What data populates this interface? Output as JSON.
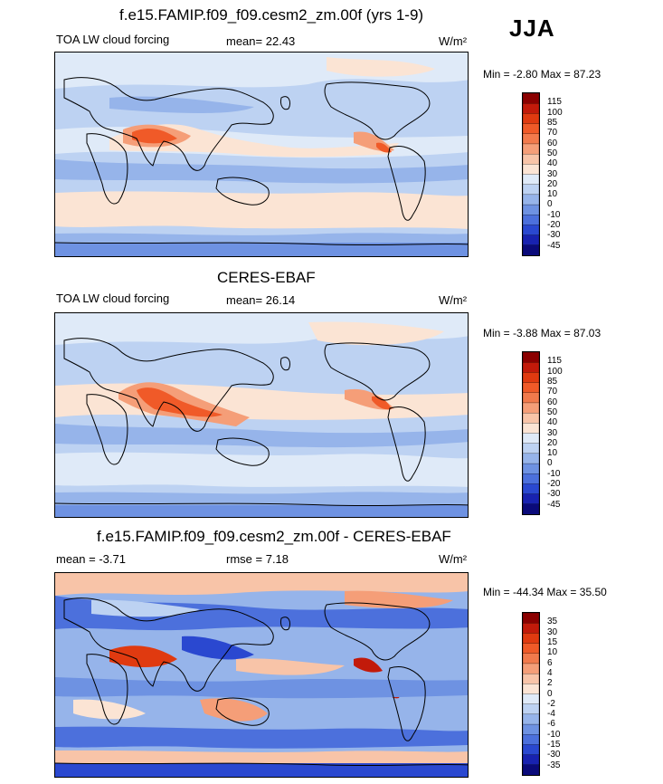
{
  "season": "JJA",
  "panels": [
    {
      "title": "f.e15.FAMIP.f09_f09.cesm2_zm.00f (yrs 1-9)",
      "left_label": "TOA LW cloud forcing",
      "stat_label": "mean=",
      "stat_value": "22.43",
      "units": "W/m²",
      "min_label": "Min =",
      "min_value": "-2.80",
      "max_label": "Max =",
      "max_value": "87.23",
      "colorbar_levels": [
        "115",
        "100",
        "85",
        "70",
        "60",
        "50",
        "40",
        "30",
        "20",
        "10",
        "0",
        "-10",
        "-20",
        "-30",
        "-45"
      ],
      "colorbar_colors": [
        "#8b0000",
        "#c21a0a",
        "#e03a10",
        "#f05a28",
        "#f27a4c",
        "#f59e78",
        "#f8c4a8",
        "#fbe4d4",
        "#dfeaf8",
        "#bdd2f2",
        "#96b4ea",
        "#6e92e2",
        "#4c70dc",
        "#2a48d0",
        "#1822b0",
        "#0a0a7a"
      ]
    },
    {
      "title": "CERES-EBAF",
      "left_label": "TOA LW cloud forcing",
      "stat_label": "mean=",
      "stat_value": "26.14",
      "units": "W/m²",
      "min_label": "Min =",
      "min_value": "-3.88",
      "max_label": "Max =",
      "max_value": "87.03",
      "colorbar_levels": [
        "115",
        "100",
        "85",
        "70",
        "60",
        "50",
        "40",
        "30",
        "20",
        "10",
        "0",
        "-10",
        "-20",
        "-30",
        "-45"
      ],
      "colorbar_colors": [
        "#8b0000",
        "#c21a0a",
        "#e03a10",
        "#f05a28",
        "#f27a4c",
        "#f59e78",
        "#f8c4a8",
        "#fbe4d4",
        "#dfeaf8",
        "#bdd2f2",
        "#96b4ea",
        "#6e92e2",
        "#4c70dc",
        "#2a48d0",
        "#1822b0",
        "#0a0a7a"
      ]
    },
    {
      "title": "f.e15.FAMIP.f09_f09.cesm2_zm.00f - CERES-EBAF",
      "left_label": "mean =  -3.71",
      "stat_label": "rmse =",
      "stat_value": "7.18",
      "units": "W/m²",
      "min_label": "Min =",
      "min_value": "-44.34",
      "max_label": "Max =",
      "max_value": "35.50",
      "colorbar_levels": [
        "35",
        "30",
        "15",
        "10",
        "6",
        "4",
        "2",
        "0",
        "-2",
        "-4",
        "-6",
        "-10",
        "-15",
        "-30",
        "-35"
      ],
      "colorbar_colors": [
        "#8b0000",
        "#c21a0a",
        "#e03a10",
        "#f05a28",
        "#f27a4c",
        "#f59e78",
        "#f8c4a8",
        "#fbe4d4",
        "#dfeaf8",
        "#bdd2f2",
        "#96b4ea",
        "#6e92e2",
        "#4c70dc",
        "#2a48d0",
        "#1822b0",
        "#0a0a7a"
      ]
    }
  ],
  "chart_data": [
    {
      "type": "heatmap",
      "title": "f.e15.FAMIP.f09_f09.cesm2_zm.00f (yrs 1-9)",
      "variable": "TOA LW cloud forcing",
      "mean": 22.43,
      "min": -2.8,
      "max": 87.23,
      "units": "W/m2",
      "contour_levels": [
        -45,
        -30,
        -20,
        -10,
        0,
        10,
        20,
        30,
        40,
        50,
        60,
        70,
        85,
        100,
        115
      ]
    },
    {
      "type": "heatmap",
      "title": "CERES-EBAF",
      "variable": "TOA LW cloud forcing",
      "mean": 26.14,
      "min": -3.88,
      "max": 87.03,
      "units": "W/m2",
      "contour_levels": [
        -45,
        -30,
        -20,
        -10,
        0,
        10,
        20,
        30,
        40,
        50,
        60,
        70,
        85,
        100,
        115
      ]
    },
    {
      "type": "heatmap",
      "title": "f.e15.FAMIP.f09_f09.cesm2_zm.00f - CERES-EBAF",
      "mean": -3.71,
      "rmse": 7.18,
      "min": -44.34,
      "max": 35.5,
      "units": "W/m2",
      "contour_levels": [
        -35,
        -30,
        -15,
        -10,
        -6,
        -4,
        -2,
        0,
        2,
        4,
        6,
        10,
        15,
        30,
        35
      ]
    }
  ]
}
